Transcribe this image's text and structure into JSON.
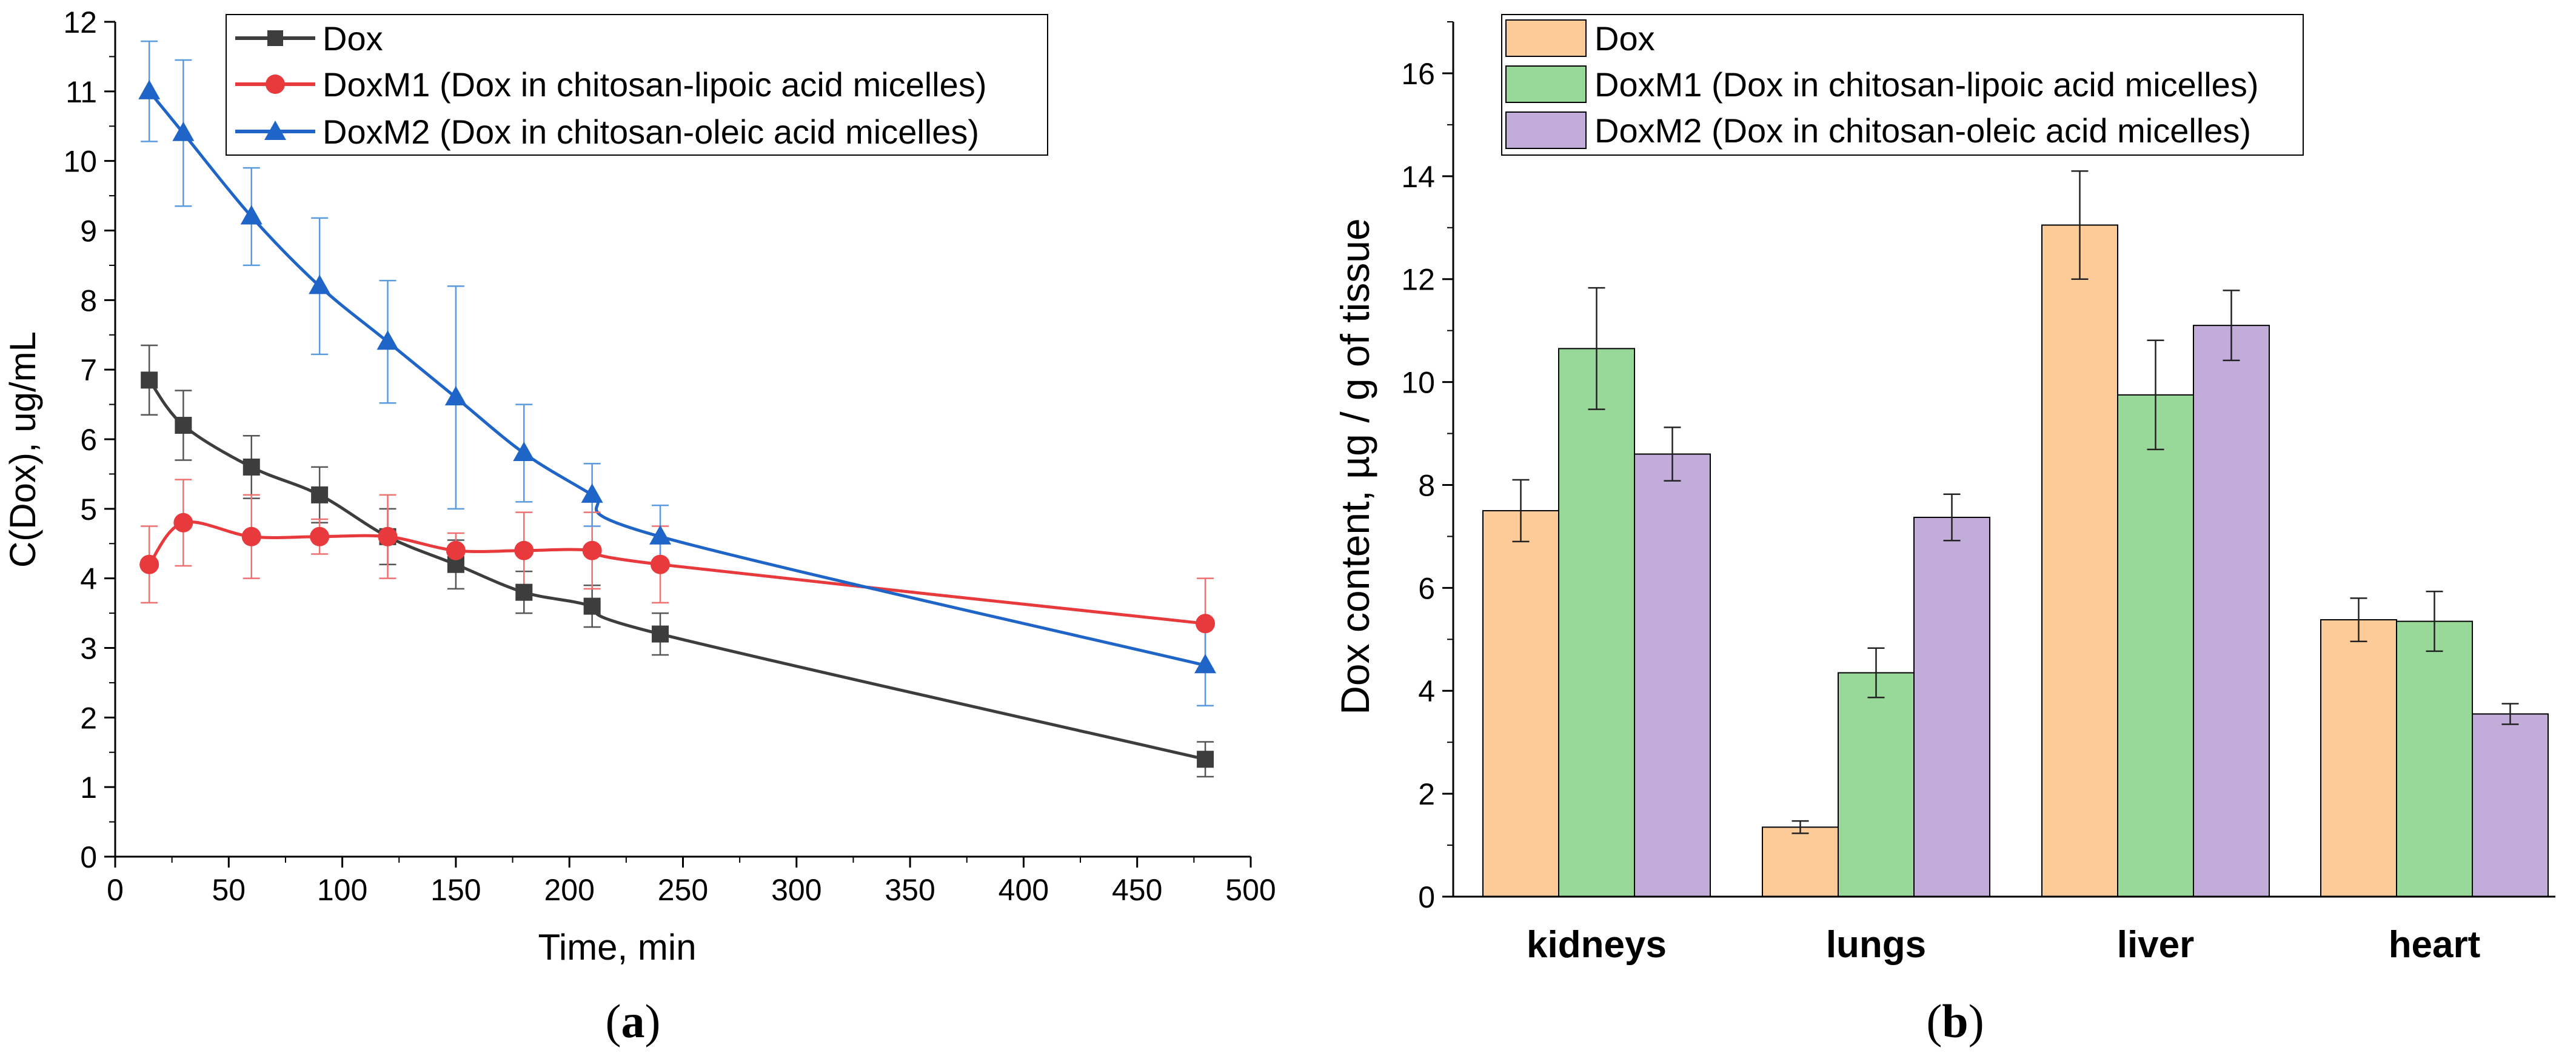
{
  "panels": [
    {
      "caption_open": "(",
      "caption_letter": "a",
      "caption_close": ")",
      "chart_data": {
        "type": "line",
        "title": "",
        "xlabel": "Time, min",
        "ylabel": "C(Dox), ug/mL",
        "xlim": [
          0,
          500
        ],
        "ylim": [
          0,
          12
        ],
        "x_ticks": [
          "0",
          "50",
          "100",
          "150",
          "200",
          "250",
          "300",
          "350",
          "400",
          "450",
          "500"
        ],
        "y_ticks": [
          "0",
          "1",
          "2",
          "3",
          "4",
          "5",
          "6",
          "7",
          "8",
          "9",
          "10",
          "11",
          "12"
        ],
        "legend_position": "top-center",
        "grid": false,
        "series": [
          {
            "name": "Dox",
            "color": "#3d3d3d",
            "marker": "square",
            "x": [
              15,
              30,
              60,
              90,
              120,
              150,
              180,
              210,
              240,
              480
            ],
            "y": [
              6.85,
              6.2,
              5.6,
              5.2,
              4.6,
              4.2,
              3.8,
              3.6,
              3.2,
              1.4
            ],
            "err": [
              0.5,
              0.5,
              0.45,
              0.4,
              0.4,
              0.35,
              0.3,
              0.3,
              0.3,
              0.25
            ]
          },
          {
            "name": "DoxM1 (Dox in chitosan-lipoic acid micelles)",
            "color": "#e8393c",
            "marker": "circle",
            "x": [
              15,
              30,
              60,
              90,
              120,
              150,
              180,
              210,
              240,
              480
            ],
            "y": [
              4.2,
              4.8,
              4.6,
              4.6,
              4.6,
              4.4,
              4.4,
              4.4,
              4.2,
              3.35
            ],
            "err": [
              0.55,
              0.62,
              0.6,
              0.25,
              0.6,
              0.25,
              0.55,
              0.55,
              0.55,
              0.65
            ]
          },
          {
            "name": "DoxM2 (Dox in chitosan-oleic acid micelles)",
            "color": "#1f65c8",
            "marker": "triangle",
            "x": [
              15,
              30,
              60,
              90,
              120,
              150,
              180,
              210,
              240,
              480
            ],
            "y": [
              11.0,
              10.4,
              9.2,
              8.2,
              7.4,
              6.6,
              5.8,
              5.2,
              4.6,
              2.75
            ],
            "err": [
              0.72,
              1.05,
              0.7,
              0.98,
              0.88,
              1.6,
              0.7,
              0.45,
              0.45,
              0.58
            ]
          }
        ]
      }
    },
    {
      "caption_open": "(",
      "caption_letter": "b",
      "caption_close": ")",
      "chart_data": {
        "type": "bar",
        "title": "",
        "xlabel": "",
        "ylabel": "Dox content, µg  / g of tissue",
        "ylim": [
          0,
          17
        ],
        "y_ticks": [
          "0",
          "2",
          "4",
          "6",
          "8",
          "10",
          "12",
          "14",
          "16"
        ],
        "categories": [
          "kidneys",
          "lungs",
          "liver",
          "heart"
        ],
        "legend_position": "top-left",
        "grid": false,
        "series": [
          {
            "name": "Dox",
            "color": "#fccb98",
            "values": [
              7.5,
              1.35,
              13.05,
              5.38
            ],
            "err": [
              0.6,
              0.12,
              1.05,
              0.42
            ]
          },
          {
            "name": "DoxM1 (Dox in chitosan-lipoic acid micelles)",
            "color": "#98d898",
            "values": [
              10.65,
              4.35,
              9.75,
              5.35
            ],
            "err": [
              1.18,
              0.48,
              1.06,
              0.58
            ]
          },
          {
            "name": "DoxM2 (Dox in chitosan-oleic acid micelles)",
            "color": "#c2acda",
            "values": [
              8.6,
              7.37,
              11.1,
              3.55
            ],
            "err": [
              0.52,
              0.45,
              0.68,
              0.2
            ]
          }
        ]
      }
    }
  ]
}
